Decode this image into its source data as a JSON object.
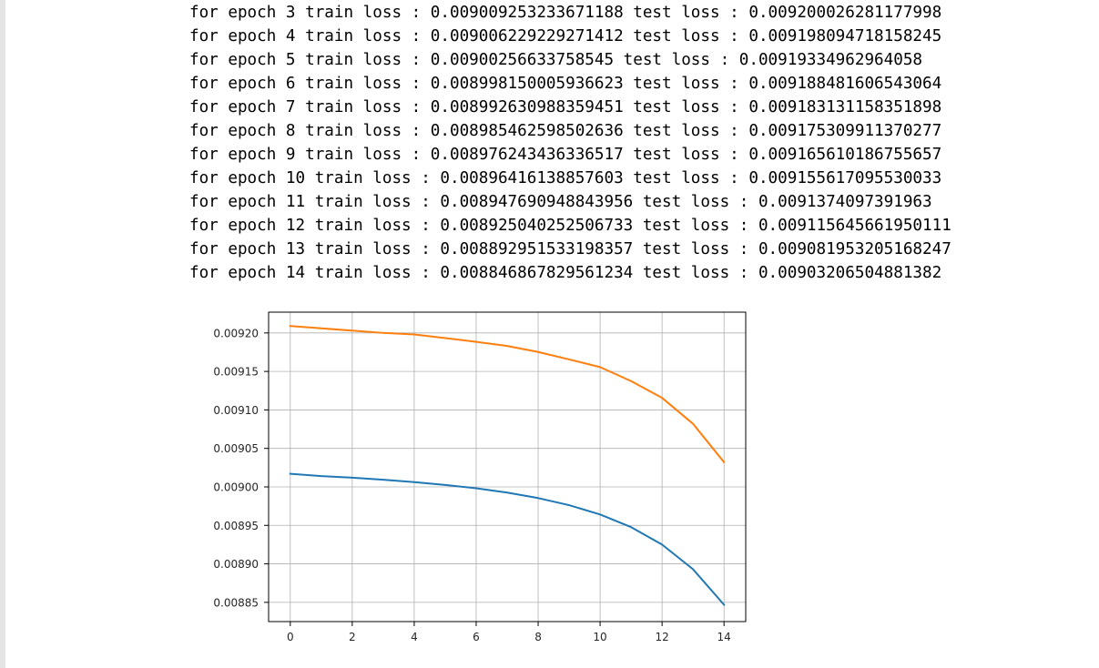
{
  "log": {
    "lines": [
      "for epoch 3 train loss : 0.009009253233671188 test loss : 0.009200026281177998",
      "for epoch 4 train loss : 0.009006229229271412 test loss : 0.009198094718158245",
      "for epoch 5 train loss : 0.00900256633758545 test loss : 0.00919334962964058",
      "for epoch 6 train loss : 0.008998150005936623 test loss : 0.009188481606543064",
      "for epoch 7 train loss : 0.008992630988359451 test loss : 0.009183131158351898",
      "for epoch 8 train loss : 0.008985462598502636 test loss : 0.009175309911370277",
      "for epoch 9 train loss : 0.008976243436336517 test loss : 0.009165610186755657",
      "for epoch 10 train loss : 0.00896416138857603 test loss : 0.009155617095530033",
      "for epoch 11 train loss : 0.008947690948843956 test loss : 0.0091374097391963",
      "for epoch 12 train loss : 0.008925040252506733 test loss : 0.009115645661950111",
      "for epoch 13 train loss : 0.008892951533198357 test loss : 0.009081953205168247",
      "for epoch 14 train loss : 0.008846867829561234 test loss : 0.00903206504881382"
    ]
  },
  "chart_data": {
    "type": "line",
    "title": "",
    "xlabel": "",
    "ylabel": "",
    "grid": true,
    "xlim": [
      -0.7,
      14.7
    ],
    "ylim": [
      0.008825,
      0.009227
    ],
    "xticks": [
      0,
      2,
      4,
      6,
      8,
      10,
      12,
      14
    ],
    "xtick_labels": [
      "0",
      "2",
      "4",
      "6",
      "8",
      "10",
      "12",
      "14"
    ],
    "yticks": [
      0.00885,
      0.0089,
      0.00895,
      0.009,
      0.00905,
      0.0091,
      0.00915,
      0.0092
    ],
    "ytick_labels": [
      "0.00885",
      "0.00890",
      "0.00895",
      "0.00900",
      "0.00905",
      "0.00910",
      "0.00915",
      "0.00920"
    ],
    "x": [
      0,
      1,
      2,
      3,
      4,
      5,
      6,
      7,
      8,
      9,
      10,
      11,
      12,
      13,
      14
    ],
    "series": [
      {
        "color": "#1f77b4",
        "values": [
          0.009017,
          0.009014,
          0.009012,
          0.009009253,
          0.009006229,
          0.009002566,
          0.00899815,
          0.008992631,
          0.008985463,
          0.008976243,
          0.008964161,
          0.008947691,
          0.00892504,
          0.008892952,
          0.008846868
        ]
      },
      {
        "color": "#ff7f0e",
        "values": [
          0.009209,
          0.009206,
          0.009203,
          0.009200026,
          0.009198095,
          0.00919335,
          0.009188482,
          0.009183131,
          0.00917531,
          0.00916561,
          0.009155617,
          0.00913741,
          0.009115646,
          0.009081953,
          0.009032065
        ]
      }
    ]
  }
}
